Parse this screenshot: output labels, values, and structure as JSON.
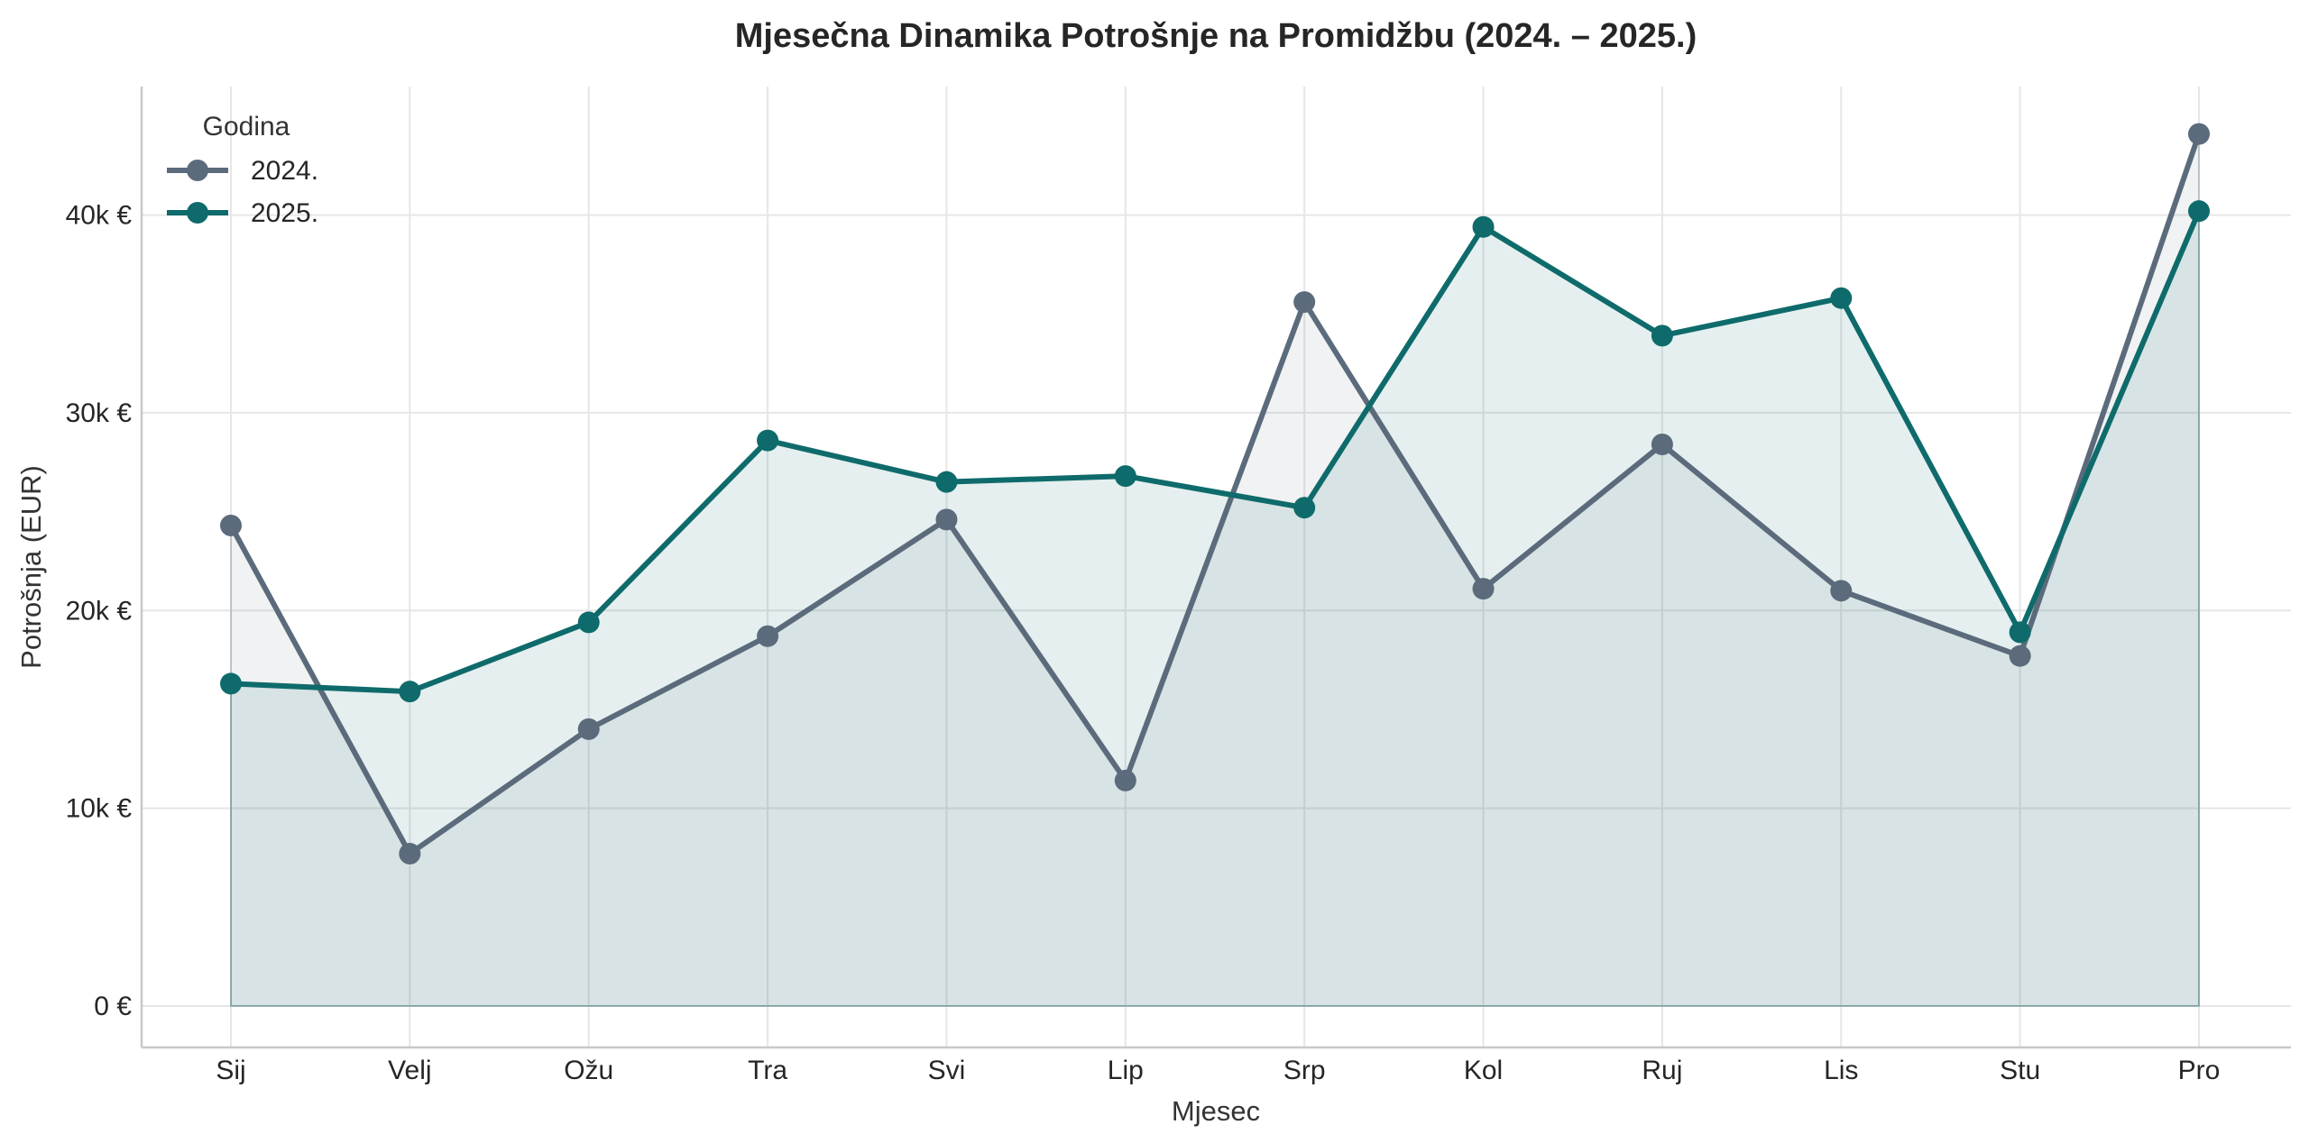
{
  "chart_data": {
    "type": "area",
    "title": "Mjesečna Dinamika Potrošnje na Promidžbu (2024. – 2025.)",
    "xlabel": "Mjesec",
    "ylabel": "Potrošnja (EUR)",
    "categories": [
      "Sij",
      "Velj",
      "Ožu",
      "Tra",
      "Svi",
      "Lip",
      "Srp",
      "Kol",
      "Ruj",
      "Lis",
      "Stu",
      "Pro"
    ],
    "ylim": [
      -2100,
      46500
    ],
    "yticks": [
      0,
      10000,
      20000,
      30000,
      40000
    ],
    "ytick_labels": [
      "0 €",
      "10k €",
      "20k €",
      "30k €",
      "40k €"
    ],
    "grid": true,
    "legend": {
      "title": "Godina",
      "position": "top-left"
    },
    "series": [
      {
        "name": "2024.",
        "color": "#5b6b7c",
        "fill": "#cfd3d8",
        "values": [
          24300,
          7700,
          14000,
          18700,
          24600,
          11400,
          35600,
          21100,
          28400,
          21000,
          17700,
          44100
        ]
      },
      {
        "name": "2025.",
        "color": "#0f6b6b",
        "fill": "#c4dcdf",
        "values": [
          16300,
          15900,
          19400,
          28600,
          26500,
          26800,
          25200,
          39400,
          33900,
          35800,
          18900,
          40200
        ]
      }
    ]
  }
}
